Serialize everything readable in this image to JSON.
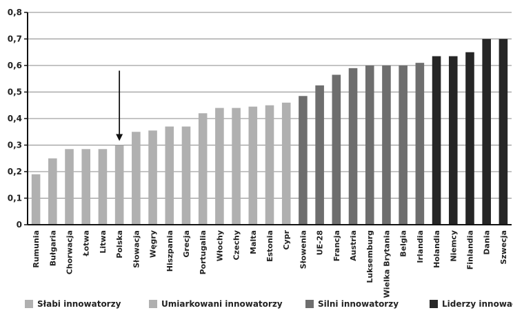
{
  "chart_data": {
    "type": "bar",
    "categories": [
      "Rumunia",
      "Bułgaria",
      "Chorwacja",
      "Łotwa",
      "Litwa",
      "Polska",
      "Słowacja",
      "Węgry",
      "Hiszpania",
      "Grecja",
      "Portugalia",
      "Włochy",
      "Czechy",
      "Malta",
      "Estonia",
      "Cypr",
      "Słowenia",
      "UE-28",
      "Francja",
      "Austria",
      "Luksemburg",
      "Wielka Brytania",
      "Belgia",
      "Irlandia",
      "Holandia",
      "Niemcy",
      "Finlandia",
      "Dania",
      "Szwecja"
    ],
    "values": [
      0.19,
      0.25,
      0.285,
      0.285,
      0.285,
      0.3,
      0.35,
      0.355,
      0.37,
      0.37,
      0.42,
      0.44,
      0.44,
      0.445,
      0.45,
      0.46,
      0.485,
      0.525,
      0.565,
      0.59,
      0.6,
      0.6,
      0.6,
      0.61,
      0.635,
      0.635,
      0.65,
      0.7,
      0.7
    ],
    "groups": [
      0,
      0,
      0,
      0,
      0,
      1,
      1,
      1,
      1,
      1,
      1,
      1,
      1,
      1,
      1,
      1,
      2,
      2,
      2,
      2,
      2,
      2,
      2,
      2,
      3,
      3,
      3,
      3,
      3
    ],
    "highlight_category": "Polska",
    "ylim": [
      0,
      0.8
    ],
    "yticks": [
      "0",
      "0,1",
      "0,2",
      "0,3",
      "0,4",
      "0,5",
      "0,6",
      "0,7",
      "0,8"
    ],
    "grid": true,
    "legend_position": "bottom",
    "legend": [
      {
        "label": "Słabi innowatorzy",
        "color": "#b0b0b0"
      },
      {
        "label": "Umiarkowani innowatorzy",
        "color": "#b0b0b0"
      },
      {
        "label": "Silni innowatorzy",
        "color": "#6e6e6e"
      },
      {
        "label": "Liderzy innowacji",
        "color": "#262626"
      }
    ]
  }
}
